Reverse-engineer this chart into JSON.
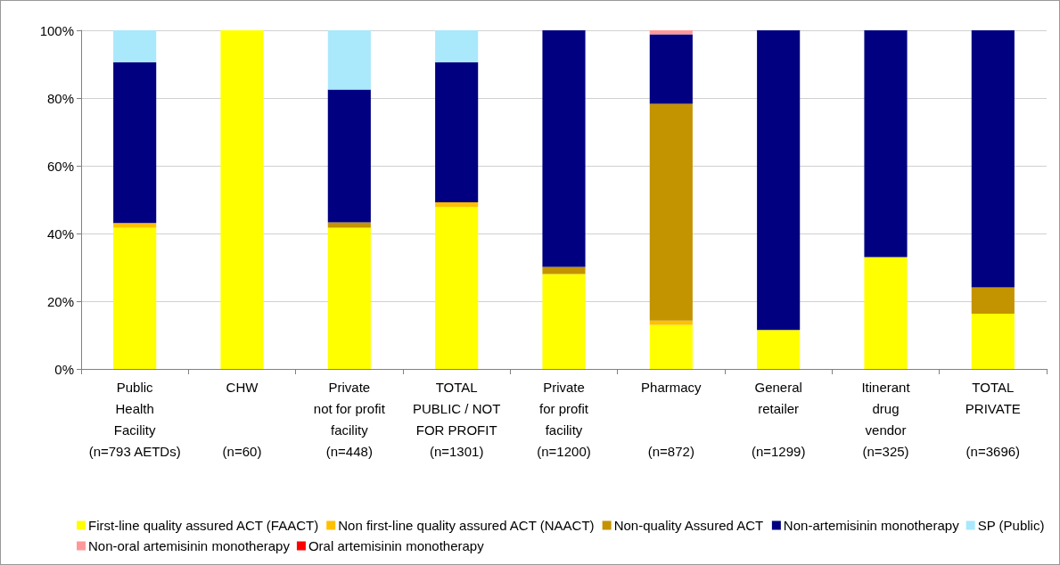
{
  "chart_data": {
    "type": "bar",
    "stacked": true,
    "categories": [
      "Public\nHealth\nFacility\n(n=793 AETDs)",
      "CHW\n\n\n(n=60)",
      "Private\nnot for profit\nfacility\n(n=448)",
      "TOTAL\nPUBLIC / NOT\nFOR PROFIT\n(n=1301)",
      "Private\nfor profit\nfacility\n(n=1200)",
      "Pharmacy\n\n\n(n=872)",
      "General\nretailer\n\n(n=1299)",
      "Itinerant\ndrug\nvendor\n(n=325)",
      "TOTAL\nPRIVATE\n\n(n=3696)"
    ],
    "series": [
      {
        "name": "First-line quality assured ACT (FAACT)",
        "color": "#ffff00",
        "values": [
          41.7,
          100,
          41.7,
          47.8,
          28.0,
          13.0,
          11.5,
          33.0,
          16.3
        ]
      },
      {
        "name": "Non first-line quality assured ACT (NAACT)",
        "color": "#ffc000",
        "values": [
          1.4,
          0,
          0,
          1.4,
          0,
          1.3,
          0,
          0,
          0
        ]
      },
      {
        "name": "Non-quality Assured ACT",
        "color": "#c49300",
        "values": [
          0,
          0,
          1.6,
          0,
          2.1,
          64.0,
          0,
          0,
          7.8
        ]
      },
      {
        "name": "Non-artemisinin monotherapy",
        "color": "#000080",
        "values": [
          47.5,
          0,
          39.2,
          41.4,
          69.9,
          20.5,
          88.5,
          67.0,
          75.9
        ]
      },
      {
        "name": "SP (Public)",
        "color": "#aae8fc",
        "values": [
          9.4,
          0,
          17.5,
          9.4,
          0,
          0,
          0,
          0,
          0
        ]
      },
      {
        "name": "Non-oral artemisinin monotherapy",
        "color": "#ff9999",
        "values": [
          0,
          0,
          0,
          0,
          0,
          1.2,
          0,
          0,
          0
        ]
      },
      {
        "name": "Oral artemisinin monotherapy",
        "color": "#ff0000",
        "values": [
          0,
          0,
          0,
          0,
          0,
          0,
          0,
          0,
          0
        ]
      }
    ],
    "ylim": [
      0,
      100
    ],
    "yticks": [
      {
        "value": 0,
        "label": "0%"
      },
      {
        "value": 20,
        "label": "20%"
      },
      {
        "value": 40,
        "label": "40%"
      },
      {
        "value": 60,
        "label": "60%"
      },
      {
        "value": 80,
        "label": "80%"
      },
      {
        "value": 100,
        "label": "100%"
      }
    ],
    "grid": "y",
    "legend": "bottom"
  }
}
